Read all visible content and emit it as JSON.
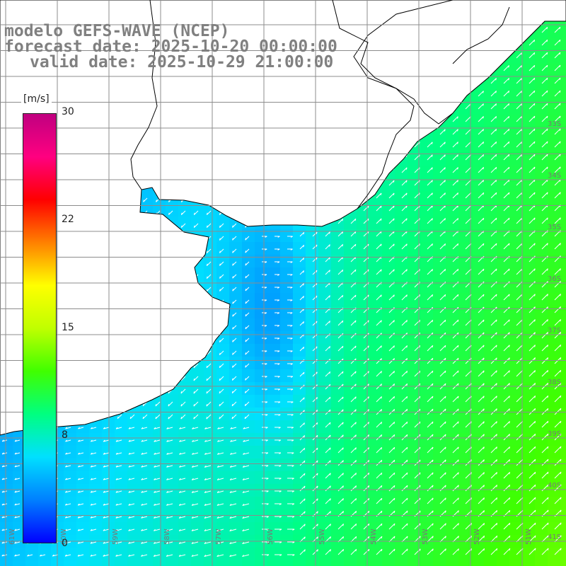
{
  "title": {
    "model": "modelo GEFS-WAVE (NCEP)",
    "forecast": "forecast date: 2025-10-20 00:00:00",
    "valid": "valid date: 2025-10-29 21:00:00"
  },
  "colorbar": {
    "unit": "[m/s]",
    "min": 0,
    "max": 30,
    "ticks": [
      "30",
      "22",
      "15",
      "8",
      "0"
    ],
    "colors": [
      "#0000ff",
      "#0080ff",
      "#00e0ff",
      "#00ff80",
      "#40ff00",
      "#c0ff00",
      "#ffff00",
      "#ff8000",
      "#ff0000",
      "#ff0080",
      "#c00080"
    ]
  },
  "map": {
    "lat_labels": [
      "33S",
      "34S",
      "35S",
      "36S",
      "37S",
      "38S",
      "39S",
      "40S",
      "41S"
    ],
    "lon_labels": [
      "61W",
      "60W",
      "59W",
      "58W",
      "57W",
      "56W",
      "55W",
      "54W",
      "53W",
      "52W",
      "51W"
    ],
    "land_color": "#ffffff",
    "grid_color": "#8c8c8c",
    "coast_color": "#000000",
    "arrow_color": "#ffffff"
  }
}
